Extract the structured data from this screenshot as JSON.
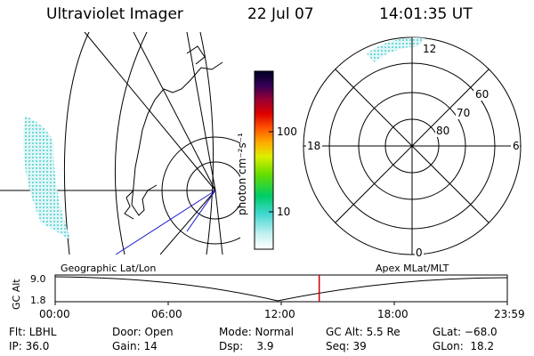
{
  "header": {
    "instrument": "Ultraviolet Imager",
    "date": "22 Jul 07",
    "time": "14:01:35 UT"
  },
  "colorbar": {
    "unit_label": "photon cm⁻²s⁻¹",
    "ticks": [
      "100",
      "10"
    ]
  },
  "polar_plot": {
    "mlt_labels": {
      "top": "12",
      "bottom": "0",
      "left": "18",
      "right": "6"
    },
    "lat_labels": [
      "60",
      "70",
      "80"
    ]
  },
  "timeline": {
    "ylabel": "GC Alt",
    "yticks": [
      "9.0",
      "1.8"
    ],
    "left_title": "Geographic Lat/Lon",
    "right_title": "Apex MLat/MLT",
    "xticks": [
      "00:00",
      "06:00",
      "12:00",
      "18:00",
      "23:59"
    ],
    "current_time_fraction": 0.584
  },
  "footer": {
    "flt": "Flt: LBHL",
    "ip": "IP: 36.0",
    "door": "Door: Open",
    "gain": "Gain: 14",
    "mode": "Mode: Normal",
    "dsp": "Dsp:    3.9",
    "gcalt": "GC Alt: 5.5 Re",
    "seq": "Seq: 39",
    "glat": "GLat: −68.0",
    "glon": "GLon:  18.2"
  },
  "colors": {
    "aurora": "#5fd6d6",
    "marker": "#cc0000",
    "track": "#1a1acc"
  }
}
